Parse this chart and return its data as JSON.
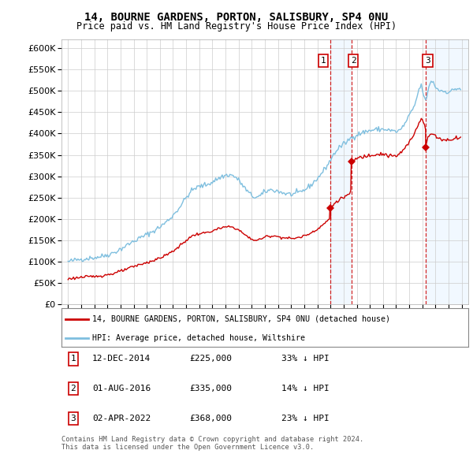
{
  "title": "14, BOURNE GARDENS, PORTON, SALISBURY, SP4 0NU",
  "subtitle": "Price paid vs. HM Land Registry's House Price Index (HPI)",
  "hpi_label": "HPI: Average price, detached house, Wiltshire",
  "property_label": "14, BOURNE GARDENS, PORTON, SALISBURY, SP4 0NU (detached house)",
  "footer1": "Contains HM Land Registry data © Crown copyright and database right 2024.",
  "footer2": "This data is licensed under the Open Government Licence v3.0.",
  "transactions": [
    {
      "num": 1,
      "date": "12-DEC-2014",
      "price": 225000,
      "pct": "33%",
      "dir": "↓",
      "x": 2014.958
    },
    {
      "num": 2,
      "date": "01-AUG-2016",
      "price": 335000,
      "pct": "14%",
      "dir": "↓",
      "x": 2016.583
    },
    {
      "num": 3,
      "date": "02-APR-2022",
      "price": 368000,
      "pct": "23%",
      "dir": "↓",
      "x": 2022.25
    }
  ],
  "hpi_color": "#7fbfdf",
  "price_color": "#cc0000",
  "vline_color": "#cc0000",
  "shade_color": "#ddeeff",
  "ylim": [
    0,
    620000
  ],
  "yticks": [
    0,
    50000,
    100000,
    150000,
    200000,
    250000,
    300000,
    350000,
    400000,
    450000,
    500000,
    550000,
    600000
  ],
  "xlim": [
    1994.5,
    2025.5
  ],
  "xticks": [
    1995,
    1996,
    1997,
    1998,
    1999,
    2000,
    2001,
    2002,
    2003,
    2004,
    2005,
    2006,
    2007,
    2008,
    2009,
    2010,
    2011,
    2012,
    2013,
    2014,
    2015,
    2016,
    2017,
    2018,
    2019,
    2020,
    2021,
    2022,
    2023,
    2024,
    2025
  ],
  "background_color": "#f8f8ff"
}
